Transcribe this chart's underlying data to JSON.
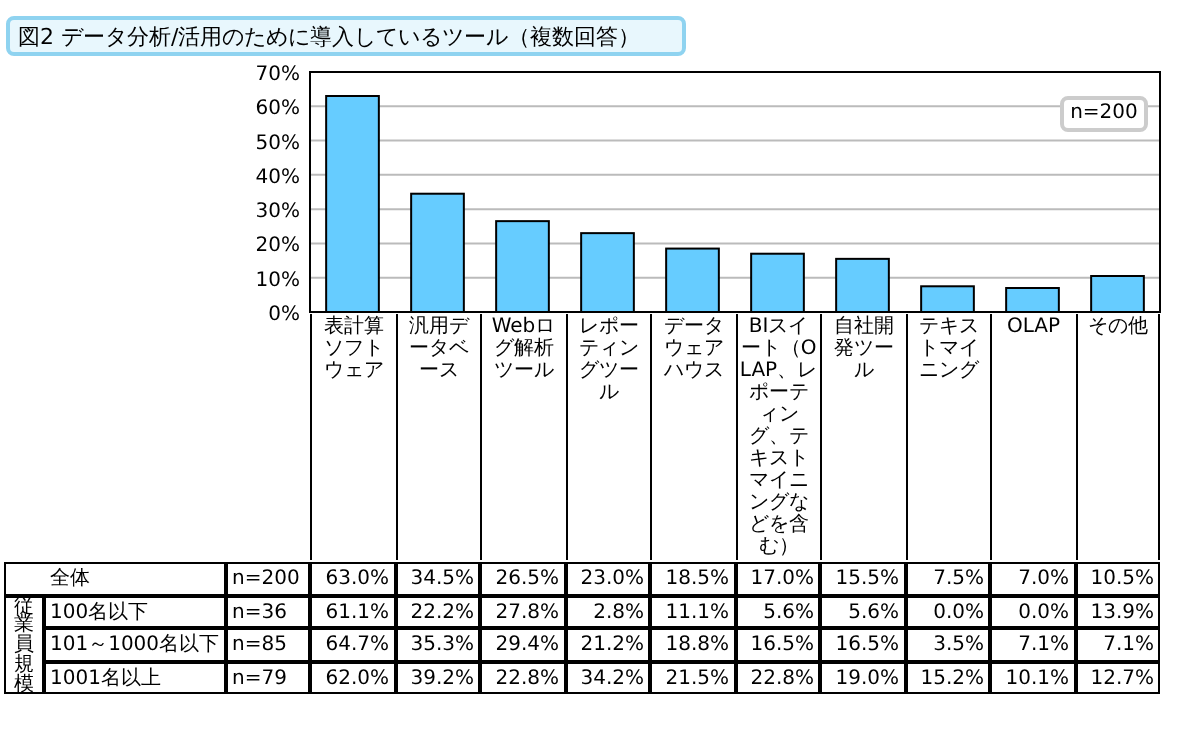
{
  "chart_data": [
    {
      "type": "bar",
      "title": "図2 データ分析/活用のために導入しているツール（複数回答）",
      "categories": [
        "表計算ソフトウェア",
        "汎用データベース",
        "Webログ解析ツール",
        "レポーティングツール",
        "データウェアハウス",
        "BIスイート（OLAP、レポーティング、テキストマイニングなどを含む）",
        "自社開発ツール",
        "テキストマイニング",
        "OLAP",
        "その他"
      ],
      "values": [
        63.0,
        34.5,
        26.5,
        23.0,
        18.5,
        17.0,
        15.5,
        7.5,
        7.0,
        10.5
      ],
      "color": "#66ccff",
      "ylim": [
        0,
        70
      ],
      "yticks": [
        {
          "value": 0,
          "label": "0%"
        },
        {
          "value": 10,
          "label": "10%"
        },
        {
          "value": 20,
          "label": "20%"
        },
        {
          "value": 30,
          "label": "30%"
        },
        {
          "value": 40,
          "label": "40%"
        },
        {
          "value": 50,
          "label": "50%"
        },
        {
          "value": 60,
          "label": "60%"
        },
        {
          "value": 70,
          "label": "70%"
        }
      ],
      "grid": "y",
      "annotations": [
        "n=200"
      ]
    },
    {
      "type": "heatmap",
      "data_labels": true,
      "ylabel": "従業員規模",
      "categories": [
        null,
        null,
        null,
        null,
        null,
        null,
        null,
        null,
        null,
        null
      ],
      "y_categories": [
        "全体",
        "100名以下",
        "101～1000名以下",
        "1001名以上"
      ],
      "y2_categories": [
        "n=200",
        "n=36",
        "n=85",
        "n=79"
      ],
      "cells": [
        [
          63.0,
          34.5,
          26.5,
          23.0,
          18.5,
          17.0,
          15.5,
          7.5,
          7.0,
          10.5
        ],
        [
          61.1,
          22.2,
          27.8,
          2.8,
          11.1,
          5.6,
          5.6,
          0.0,
          0.0,
          13.9
        ],
        [
          64.7,
          35.3,
          29.4,
          21.2,
          18.8,
          16.5,
          16.5,
          3.5,
          7.1,
          7.1
        ],
        [
          62.0,
          39.2,
          22.8,
          34.2,
          21.5,
          22.8,
          19.0,
          15.2,
          10.1,
          12.7
        ]
      ],
      "cell_labels": [
        [
          "63.0%",
          "34.5%",
          "26.5%",
          "23.0%",
          "18.5%",
          "17.0%",
          "15.5%",
          "7.5%",
          "7.0%",
          "10.5%"
        ],
        [
          "61.1%",
          "22.2%",
          "27.8%",
          "2.8%",
          "11.1%",
          "5.6%",
          "5.6%",
          "0.0%",
          "0.0%",
          "13.9%"
        ],
        [
          "64.7%",
          "35.3%",
          "29.4%",
          "21.2%",
          "18.8%",
          "16.5%",
          "16.5%",
          "3.5%",
          "7.1%",
          "7.1%"
        ],
        [
          "62.0%",
          "39.2%",
          "22.8%",
          "34.2%",
          "21.5%",
          "22.8%",
          "19.0%",
          "15.2%",
          "10.1%",
          "12.7%"
        ]
      ]
    }
  ]
}
